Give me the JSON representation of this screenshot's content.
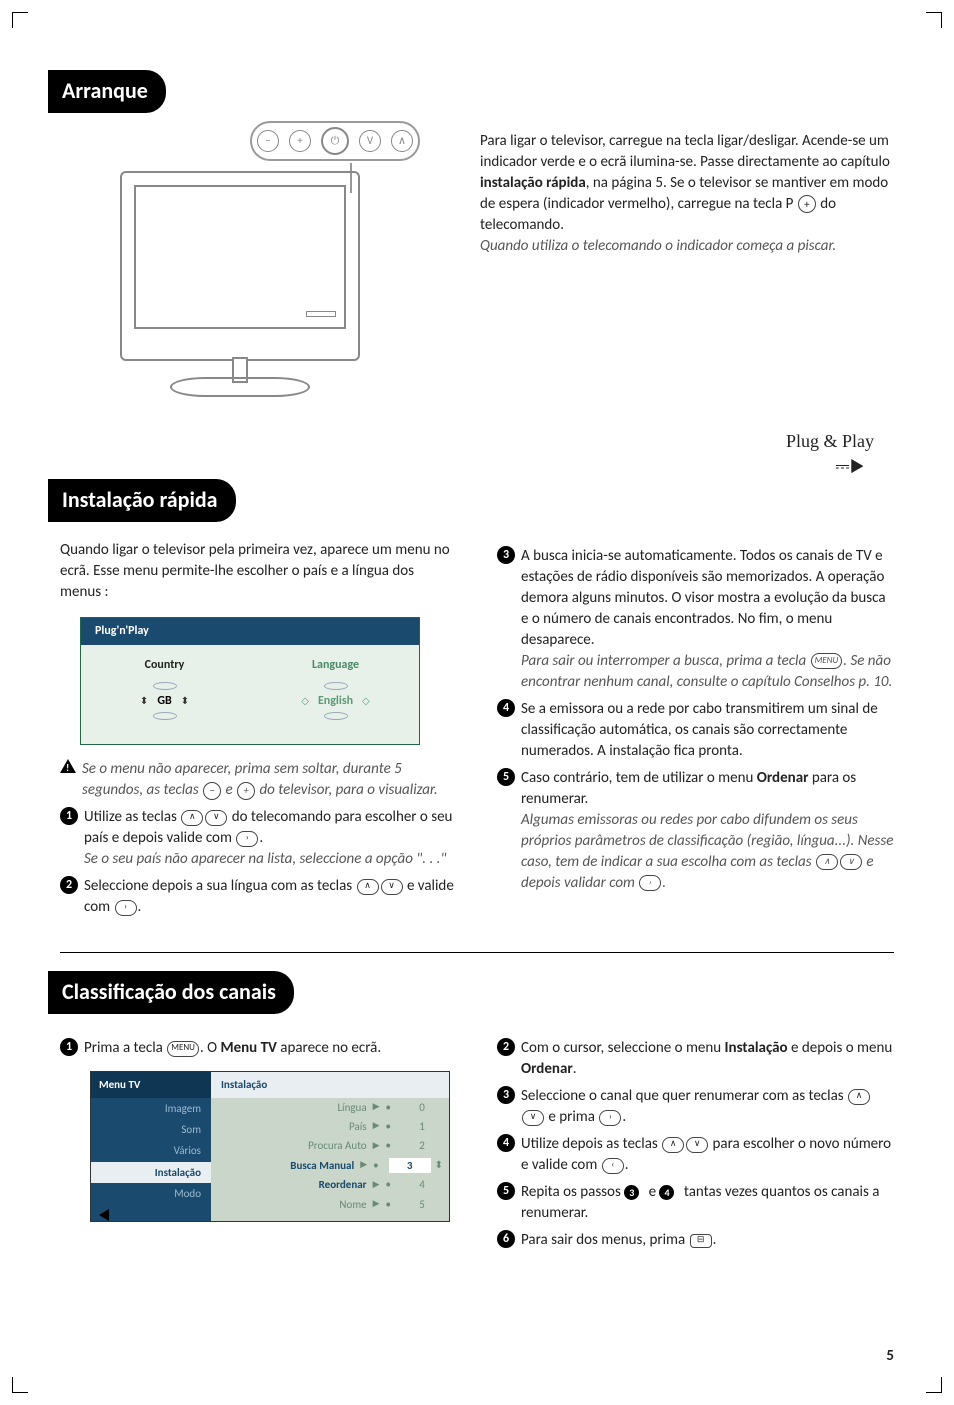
{
  "page_number": "5",
  "sections": {
    "arranque": {
      "title": "Arranque",
      "buttons": [
        "−",
        "+",
        "⏻",
        "V",
        "∧"
      ],
      "p1_parts": [
        "Para ligar o televisor, carregue na tecla ligar/desligar. Acende-se um indicador verde e o ecrã ilumina-se. Passe directamente ao capítulo ",
        "instalação rápida",
        ", na página 5. Se o televisor se mantiver em modo de espera (indicador vermelho), carregue na tecla P ",
        " do telecomando."
      ],
      "p2": "Quando utiliza o telecomando o indicador começa a piscar.",
      "plug": "Plug & Play"
    },
    "instalacao": {
      "title": "Instalação rápida",
      "intro": "Quando ligar o televisor pela primeira vez, aparece um menu no ecrã. Esse menu permite-lhe escolher o país e a língua dos menus :",
      "osd": {
        "header": "Plug'n'Play",
        "country_label": "Country",
        "country_value": "GB",
        "language_label": "Language",
        "language_value": "English"
      },
      "warn": [
        "Se o menu não aparecer, prima sem soltar, durante 5 segundos, as teclas ",
        " e ",
        " do televisor, para o visualizar."
      ],
      "step1": [
        "Utilize as teclas ",
        " do telecomando para escolher o seu país e depois valide com ",
        "."
      ],
      "step1_note": "Se o seu país não aparecer na lista, seleccione a opção \". . .\"",
      "step2": [
        "Seleccione depois a sua língua com as teclas ",
        " e valide com ",
        "."
      ],
      "step3a": "A busca inicia-se automaticamente. Todos os canais de TV e estações de rádio disponíveis são memorizados. A operação demora alguns minutos. O visor mostra a evolução da busca e o número de canais encontrados.  No fim, o menu desaparece.",
      "step3b": [
        "Para sair ou interromper a busca, prima a tecla ",
        ". Se não encontrar nenhum canal, consulte o capítulo Conselhos p. 10."
      ],
      "step4": "Se a emissora ou a rede por cabo transmitirem um sinal de classificação automática, os canais  são correctamente numerados. A instalação fica pronta.",
      "step5a": [
        "Caso contrário, tem de utilizar o menu ",
        "Ordenar",
        " para os renumerar."
      ],
      "step5b": [
        "Algumas emissoras ou redes por cabo difundem os seus próprios parâmetros de classificação (região, língua...). Nesse caso, tem de indicar a sua escolha com as teclas ",
        " e depois validar com ",
        "."
      ]
    },
    "classificacao": {
      "title": "Classificação dos canais",
      "step1": [
        "Prima a tecla ",
        ". O ",
        "Menu TV",
        " aparece no ecrã."
      ],
      "menu": {
        "left_header": "Menu TV",
        "left_items": [
          "Imagem",
          "Som",
          "Vários",
          "Instalação",
          "Modo"
        ],
        "left_active_index": 3,
        "right_header": "Instalação",
        "rows": [
          {
            "label": "Língua",
            "num": "0"
          },
          {
            "label": "País",
            "num": "1"
          },
          {
            "label": "Procura Auto",
            "num": "2"
          },
          {
            "label": "Busca Manual",
            "num": "3",
            "active": true
          },
          {
            "label": "Reordenar",
            "num": "4",
            "darklabel": true
          },
          {
            "label": "Nome",
            "num": "5"
          }
        ]
      },
      "step2": [
        "Com o cursor, seleccione o menu ",
        "Instalação",
        " e depois o menu ",
        "Ordenar",
        "."
      ],
      "step3": [
        "Seleccione o canal que quer renumerar com as teclas ",
        " e prima ",
        "."
      ],
      "step4": [
        "Utilize depois as teclas ",
        " para escolher o novo número e valide com ",
        "."
      ],
      "step5": [
        "Repita os passos ",
        " e ",
        " tantas vezes quantos os canais a renumerar."
      ],
      "step6": [
        "Para sair dos menus, prima ",
        "."
      ]
    }
  },
  "colors": {
    "osd_header_bg": "#1a4a6e",
    "osd_body_bg": "#e8f0ea",
    "dim_green": "#5a9a76"
  }
}
